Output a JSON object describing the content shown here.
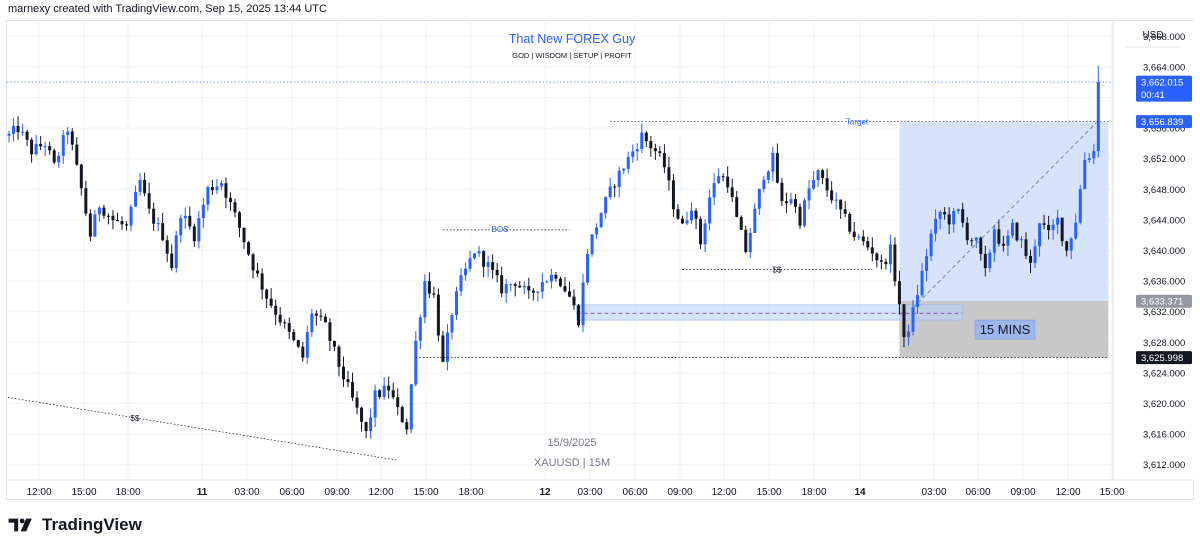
{
  "header": {
    "attribution": "marnexy created with TradingView.com, Sep 15, 2025 13:44 UTC"
  },
  "chart_title": "That New FOREX Guy",
  "chart_subtitle": "GOD | WISDOM | SETUP | PROFIT",
  "watermark": {
    "date": "15/9/2025",
    "symbol": "XAUUSD | 15M"
  },
  "brand": {
    "name": "TradingView"
  },
  "colors": {
    "up_candle": "#2962ff",
    "down_candle": "#131722",
    "accent": "#2962ff",
    "zone_fill": "#bbd0fb",
    "stop_fill": "#9e9e9e",
    "grid": "#f0f3fa",
    "dotted": "#2962ff"
  },
  "chart_data": {
    "type": "candlestick",
    "currency": "USD",
    "ylim": [
      3610,
      3670
    ],
    "y_ticks": [
      "3,612.000",
      "3,616.000",
      "3,620.000",
      "3,624.000",
      "3,628.000",
      "3,632.000",
      "3,636.000",
      "3,640.000",
      "3,644.000",
      "3,648.000",
      "3,652.000",
      "3,656.000",
      "3,660.000",
      "3,664.000",
      "3,668.000"
    ],
    "x_labels": [
      {
        "label": "12:00",
        "bold": false
      },
      {
        "label": "15:00",
        "bold": false
      },
      {
        "label": "18:00",
        "bold": false
      },
      {
        "label": "11",
        "bold": true
      },
      {
        "label": "03:00",
        "bold": false
      },
      {
        "label": "06:00",
        "bold": false
      },
      {
        "label": "09:00",
        "bold": false
      },
      {
        "label": "12:00",
        "bold": false
      },
      {
        "label": "15:00",
        "bold": false
      },
      {
        "label": "18:00",
        "bold": false
      },
      {
        "label": "12",
        "bold": true
      },
      {
        "label": "03:00",
        "bold": false
      },
      {
        "label": "06:00",
        "bold": false
      },
      {
        "label": "09:00",
        "bold": false
      },
      {
        "label": "12:00",
        "bold": false
      },
      {
        "label": "15:00",
        "bold": false
      },
      {
        "label": "18:00",
        "bold": false
      },
      {
        "label": "14",
        "bold": true
      },
      {
        "label": "03:00",
        "bold": false
      },
      {
        "label": "06:00",
        "bold": false
      },
      {
        "label": "09:00",
        "bold": false
      },
      {
        "label": "12:00",
        "bold": false
      },
      {
        "label": "15:00",
        "bold": false
      }
    ],
    "price_labels": [
      {
        "price": 3662.015,
        "text": "3,662.015",
        "subtext": "00:41",
        "style": "blue"
      },
      {
        "price": 3656.839,
        "text": "3,656.839",
        "style": "blue"
      },
      {
        "price": 3633.371,
        "text": "3,633.371",
        "style": "gray"
      },
      {
        "price": 3625.998,
        "text": "3,625.998",
        "style": "black"
      }
    ],
    "annotations": {
      "target": {
        "label": "Target",
        "price": 3656.839
      },
      "bos": {
        "label": "BOS",
        "price": 3642.7
      },
      "ss_mid": {
        "label": "$$",
        "price": 3637.5
      },
      "ss_low": {
        "label": "$$",
        "from_price": 3620.8,
        "to_price": 3612.6
      },
      "position_label": "15 MINS",
      "demand_zone": {
        "top": 3632.9,
        "bottom": 3630.9,
        "mid": 3631.8
      },
      "profit_zone": {
        "top": 3656.8,
        "bottom": 3633.4
      },
      "stop_zone": {
        "top": 3633.4,
        "bottom": 3626.0
      },
      "last_price": 3662.015
    },
    "anchors": [
      [
        0,
        3655
      ],
      [
        2,
        3656
      ],
      [
        5,
        3653
      ],
      [
        8,
        3654
      ],
      [
        10,
        3651
      ],
      [
        13,
        3656
      ],
      [
        16,
        3648
      ],
      [
        18,
        3642
      ],
      [
        20,
        3646
      ],
      [
        23,
        3644
      ],
      [
        26,
        3643
      ],
      [
        29,
        3649
      ],
      [
        31,
        3645
      ],
      [
        34,
        3642
      ],
      [
        36,
        3638
      ],
      [
        38,
        3645
      ],
      [
        41,
        3642
      ],
      [
        44,
        3648
      ],
      [
        47,
        3649
      ],
      [
        49,
        3646
      ],
      [
        51,
        3643
      ],
      [
        54,
        3638
      ],
      [
        57,
        3634
      ],
      [
        60,
        3631
      ],
      [
        63,
        3628
      ],
      [
        65,
        3626
      ],
      [
        67,
        3632
      ],
      [
        70,
        3630
      ],
      [
        73,
        3625
      ],
      [
        75,
        3622
      ],
      [
        77,
        3619
      ],
      [
        79,
        3616
      ],
      [
        81,
        3621
      ],
      [
        84,
        3622
      ],
      [
        86,
        3619
      ],
      [
        88,
        3617
      ],
      [
        90,
        3628
      ],
      [
        92,
        3636
      ],
      [
        94,
        3634
      ],
      [
        96,
        3625
      ],
      [
        98,
        3632
      ],
      [
        100,
        3636
      ],
      [
        103,
        3640
      ],
      [
        106,
        3638
      ],
      [
        109,
        3635
      ],
      [
        112,
        3636
      ],
      [
        115,
        3634
      ],
      [
        118,
        3636
      ],
      [
        121,
        3637
      ],
      [
        124,
        3634
      ],
      [
        126,
        3631
      ],
      [
        128,
        3640
      ],
      [
        131,
        3645
      ],
      [
        134,
        3649
      ],
      [
        137,
        3652
      ],
      [
        140,
        3655
      ],
      [
        143,
        3653
      ],
      [
        145,
        3651
      ],
      [
        147,
        3646
      ],
      [
        149,
        3643
      ],
      [
        151,
        3646
      ],
      [
        153,
        3641
      ],
      [
        155,
        3647
      ],
      [
        157,
        3650
      ],
      [
        159,
        3649
      ],
      [
        161,
        3644
      ],
      [
        163,
        3640
      ],
      [
        165,
        3645
      ],
      [
        167,
        3650
      ],
      [
        169,
        3652
      ],
      [
        171,
        3646
      ],
      [
        173,
        3647
      ],
      [
        175,
        3644
      ],
      [
        177,
        3648
      ],
      [
        179,
        3650
      ],
      [
        181,
        3648
      ],
      [
        183,
        3646
      ],
      [
        185,
        3644
      ],
      [
        187,
        3642
      ],
      [
        189,
        3641
      ],
      [
        191,
        3640
      ],
      [
        193,
        3638
      ],
      [
        195,
        3640
      ],
      [
        197,
        3633
      ],
      [
        198,
        3628
      ],
      [
        200,
        3632
      ],
      [
        202,
        3637
      ],
      [
        204,
        3642
      ],
      [
        206,
        3645
      ],
      [
        208,
        3644
      ],
      [
        210,
        3645
      ],
      [
        212,
        3642
      ],
      [
        214,
        3641
      ],
      [
        216,
        3637
      ],
      [
        218,
        3643
      ],
      [
        220,
        3640
      ],
      [
        222,
        3643
      ],
      [
        224,
        3641
      ],
      [
        226,
        3638
      ],
      [
        228,
        3644
      ],
      [
        230,
        3642
      ],
      [
        232,
        3644
      ],
      [
        234,
        3640
      ],
      [
        236,
        3644
      ],
      [
        238,
        3652
      ],
      [
        240,
        3653
      ],
      [
        241,
        3661.5
      ]
    ]
  }
}
